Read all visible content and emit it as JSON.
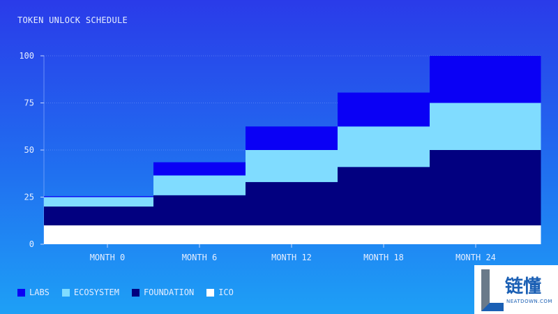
{
  "chart_data": {
    "type": "area",
    "stacked": true,
    "step": true,
    "title": "TOKEN UNLOCK SCHEDULE",
    "categories": [
      "MONTH 0",
      "MONTH 6",
      "MONTH 12",
      "MONTH 18",
      "MONTH 24"
    ],
    "ylim": [
      0,
      100
    ],
    "yticks": [
      0,
      25,
      50,
      75,
      100
    ],
    "grid": true,
    "legend": "bottom-left",
    "series": [
      {
        "name": "ICO",
        "color": "#ffffff",
        "values": [
          10,
          10,
          10,
          10,
          10
        ]
      },
      {
        "name": "FOUNDATION",
        "color": "#020080",
        "values": [
          10,
          16,
          23,
          31,
          40
        ]
      },
      {
        "name": "ECOSYSTEM",
        "color": "#80dcff",
        "values": [
          5,
          10.5,
          17,
          21.5,
          25
        ]
      },
      {
        "name": "LABS",
        "color": "#0a00f5",
        "values": [
          0.5,
          7,
          12.5,
          18,
          25
        ]
      }
    ]
  },
  "legend_items": [
    "LABS",
    "ECOSYSTEM",
    "FOUNDATION",
    "ICO"
  ],
  "watermark": {
    "cn": "链懂",
    "en": "NEATDOWN.COM"
  }
}
